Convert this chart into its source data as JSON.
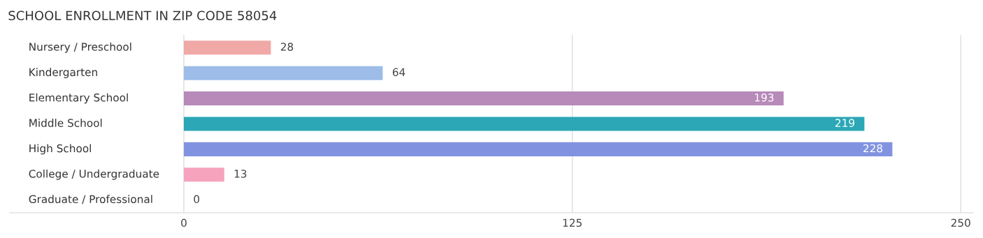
{
  "chart_data": {
    "type": "bar",
    "orientation": "horizontal",
    "title": "SCHOOL ENROLLMENT IN ZIP CODE 58054",
    "categories": [
      "Nursery / Preschool",
      "Kindergarten",
      "Elementary School",
      "Middle School",
      "High School",
      "College / Undergraduate",
      "Graduate / Professional"
    ],
    "values": [
      28,
      64,
      193,
      219,
      228,
      13,
      0
    ],
    "colors": [
      "#f0a9a7",
      "#9dbde8",
      "#b78ab9",
      "#2ba7b6",
      "#8193e0",
      "#f6a3be",
      "#f8c9a0"
    ],
    "xlim": [
      -56,
      254
    ],
    "xticks": [
      0,
      125,
      250
    ],
    "grid": "x",
    "data_labels": true
  }
}
